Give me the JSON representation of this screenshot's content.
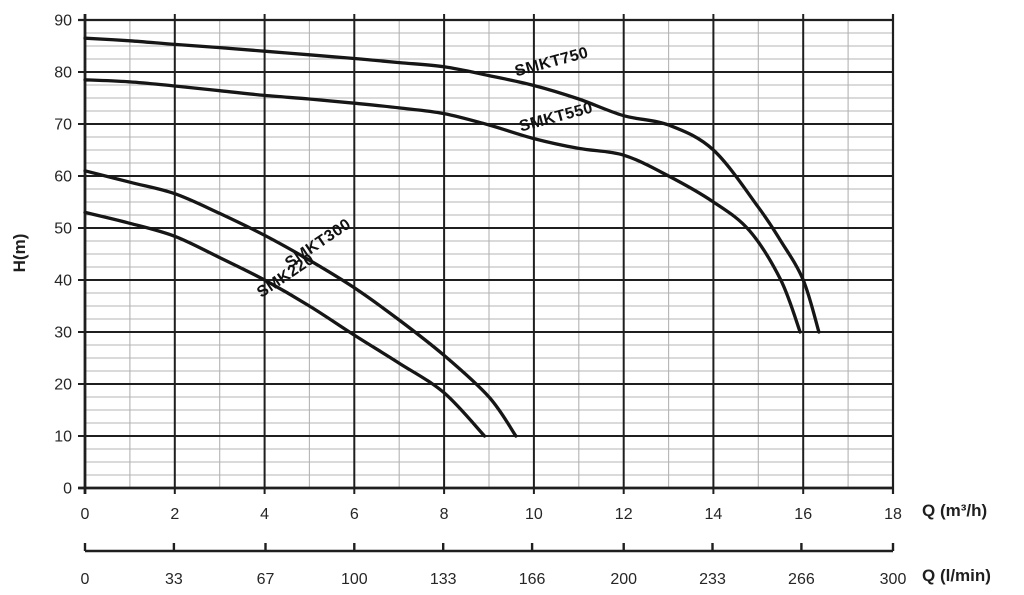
{
  "chart_data": {
    "type": "line",
    "title": "",
    "xlabel": "Q (m³/h)",
    "x2label": "Q (l/min)",
    "ylabel": "H(m)",
    "xlim": [
      0,
      18
    ],
    "ylim": [
      0,
      90
    ],
    "x_ticks": [
      0,
      2,
      4,
      6,
      8,
      10,
      12,
      14,
      16,
      18
    ],
    "y_ticks": [
      0,
      10,
      20,
      30,
      40,
      50,
      60,
      70,
      80,
      90
    ],
    "x2_ticks": [
      0,
      33,
      67,
      100,
      133,
      166,
      200,
      233,
      266,
      300
    ],
    "x2_max": 300,
    "grid": {
      "x_major_step": 2,
      "x_minor_step": 1,
      "y_major_step": 10,
      "y_minor_step": 2.5,
      "major_color": "#1f1f1f",
      "minor_color": "#b4b4b4"
    },
    "legend_position": "inline-curve-labels",
    "series": [
      {
        "name": "SMKT750",
        "label_at": {
          "q": 10.4,
          "h": 81.8,
          "angle": -15
        },
        "points": [
          [
            0,
            86.5
          ],
          [
            1,
            86.0
          ],
          [
            2,
            85.3
          ],
          [
            3,
            84.7
          ],
          [
            4,
            84.0
          ],
          [
            5,
            83.3
          ],
          [
            6,
            82.6
          ],
          [
            7,
            81.8
          ],
          [
            8,
            81.0
          ],
          [
            9,
            79.3
          ],
          [
            10,
            77.4
          ],
          [
            11,
            74.8
          ],
          [
            12,
            71.6
          ],
          [
            13,
            69.8
          ],
          [
            14,
            65.0
          ],
          [
            15,
            54.0
          ],
          [
            15.5,
            47.5
          ],
          [
            16,
            40.0
          ],
          [
            16.35,
            30.0
          ]
        ]
      },
      {
        "name": "SMKT550",
        "label_at": {
          "q": 10.5,
          "h": 71.2,
          "angle": -15
        },
        "points": [
          [
            0,
            78.5
          ],
          [
            1,
            78.1
          ],
          [
            2,
            77.3
          ],
          [
            3,
            76.4
          ],
          [
            4,
            75.5
          ],
          [
            5,
            74.8
          ],
          [
            6,
            74.0
          ],
          [
            7,
            73.1
          ],
          [
            8,
            72.0
          ],
          [
            9,
            69.8
          ],
          [
            10,
            67.2
          ],
          [
            11,
            65.3
          ],
          [
            12,
            64.0
          ],
          [
            13,
            60.0
          ],
          [
            14,
            55.0
          ],
          [
            14.8,
            49.5
          ],
          [
            15.5,
            40.0
          ],
          [
            15.93,
            30.0
          ]
        ]
      },
      {
        "name": "SMKT300",
        "label_at": {
          "q": 5.2,
          "h": 46.9,
          "angle": -34
        },
        "points": [
          [
            0,
            61.0
          ],
          [
            1,
            58.8
          ],
          [
            2,
            56.6
          ],
          [
            3,
            52.8
          ],
          [
            4,
            48.6
          ],
          [
            5,
            43.8
          ],
          [
            6,
            38.5
          ],
          [
            7,
            32.3
          ],
          [
            8,
            25.5
          ],
          [
            9,
            17.5
          ],
          [
            9.6,
            10.0
          ]
        ]
      },
      {
        "name": "SMK220",
        "label_at": {
          "q": 4.48,
          "h": 40.7,
          "angle": -34
        },
        "points": [
          [
            0,
            53.0
          ],
          [
            1,
            50.9
          ],
          [
            2,
            48.4
          ],
          [
            3,
            44.3
          ],
          [
            4,
            40.0
          ],
          [
            5,
            35.0
          ],
          [
            6,
            29.4
          ],
          [
            7,
            24.0
          ],
          [
            8,
            18.3
          ],
          [
            8.9,
            10.0
          ]
        ]
      }
    ]
  },
  "colors": {
    "curve": "#161616",
    "axis": "#1f1f1f",
    "grid_major": "#1f1f1f",
    "grid_minor": "#b4b4b4",
    "text": "#262626",
    "background": "#ffffff"
  }
}
